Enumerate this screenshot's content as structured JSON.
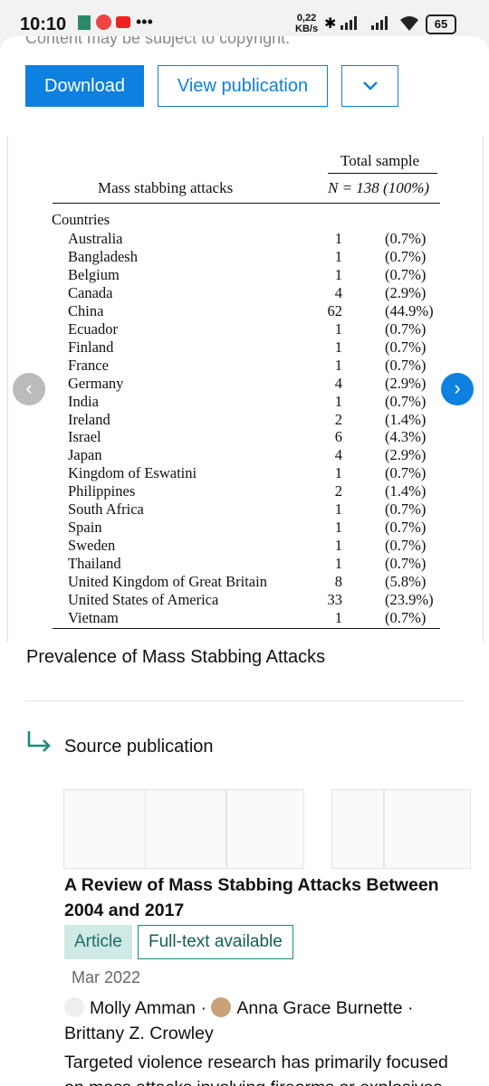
{
  "status_bar": {
    "time": "10:10",
    "speed": "0,22",
    "speed_unit": "KB/s",
    "battery": "65"
  },
  "notice": "Content may be subject to copyright.",
  "buttons": {
    "download": "Download",
    "view": "View publication"
  },
  "table": {
    "group_header": "Total sample",
    "column_label": "Mass stabbing attacks",
    "column_total": "N = 138 (100%)",
    "section": "Countries",
    "rows": [
      [
        "Australia",
        1,
        "(0.7%)"
      ],
      [
        "Bangladesh",
        1,
        "(0.7%)"
      ],
      [
        "Belgium",
        1,
        "(0.7%)"
      ],
      [
        "Canada",
        4,
        "(2.9%)"
      ],
      [
        "China",
        62,
        "(44.9%)"
      ],
      [
        "Ecuador",
        1,
        "(0.7%)"
      ],
      [
        "Finland",
        1,
        "(0.7%)"
      ],
      [
        "France",
        1,
        "(0.7%)"
      ],
      [
        "Germany",
        4,
        "(2.9%)"
      ],
      [
        "India",
        1,
        "(0.7%)"
      ],
      [
        "Ireland",
        2,
        "(1.4%)"
      ],
      [
        "Israel",
        6,
        "(4.3%)"
      ],
      [
        "Japan",
        4,
        "(2.9%)"
      ],
      [
        "Kingdom of Eswatini",
        1,
        "(0.7%)"
      ],
      [
        "Philippines",
        2,
        "(1.4%)"
      ],
      [
        "South Africa",
        1,
        "(0.7%)"
      ],
      [
        "Spain",
        1,
        "(0.7%)"
      ],
      [
        "Sweden",
        1,
        "(0.7%)"
      ],
      [
        "Thailand",
        1,
        "(0.7%)"
      ],
      [
        "United Kingdom of Great Britain",
        8,
        "(5.8%)"
      ],
      [
        "United States of America",
        33,
        "(23.9%)"
      ],
      [
        "Vietnam",
        1,
        "(0.7%)"
      ]
    ]
  },
  "caption": "Prevalence of Mass Stabbing Attacks",
  "source_label": "Source publication",
  "publication": {
    "title": "A Review of Mass Stabbing Attacks Between 2004 and 2017",
    "tags": [
      "Article",
      "Full-text available"
    ],
    "date": "Mar 2022",
    "authors": [
      "Molly Amman",
      "Anna Grace Burnette",
      "Brittany Z. Crowley"
    ],
    "abstract": "Targeted violence research has primarily focused on mass attacks involving firearms or explosives"
  }
}
